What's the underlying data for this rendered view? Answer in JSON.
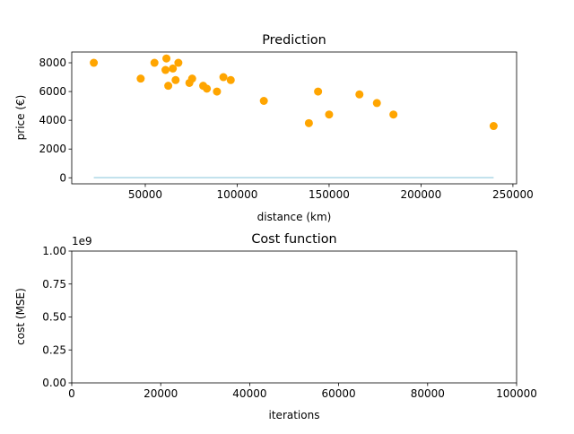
{
  "chart_data": [
    {
      "type": "scatter",
      "title": "Prediction",
      "xlabel": "distance (km)",
      "ylabel": "price (€)",
      "xlim": [
        10000,
        252000
      ],
      "ylim": [
        -420,
        8750
      ],
      "xticks": [
        50000,
        100000,
        150000,
        200000,
        250000
      ],
      "xtick_labels": [
        "50000",
        "100000",
        "150000",
        "200000",
        "250000"
      ],
      "yticks": [
        0,
        2000,
        4000,
        6000,
        8000
      ],
      "ytick_labels": [
        "0",
        "2000",
        "4000",
        "6000",
        "8000"
      ],
      "grid": false,
      "series": [
        {
          "kind": "points",
          "color": "#ffa500",
          "points": [
            [
              22000,
              8000
            ],
            [
              47500,
              6900
            ],
            [
              55000,
              8000
            ],
            [
              61500,
              8300
            ],
            [
              61000,
              7500
            ],
            [
              62500,
              6400
            ],
            [
              65000,
              7600
            ],
            [
              66500,
              6800
            ],
            [
              68000,
              8000
            ],
            [
              74000,
              6600
            ],
            [
              75500,
              6900
            ],
            [
              81500,
              6400
            ],
            [
              83500,
              6200
            ],
            [
              89000,
              6000
            ],
            [
              92500,
              7000
            ],
            [
              96500,
              6800
            ],
            [
              114500,
              5350
            ],
            [
              139000,
              3800
            ],
            [
              144000,
              6000
            ],
            [
              150000,
              4400
            ],
            [
              166500,
              5800
            ],
            [
              176000,
              5200
            ],
            [
              185000,
              4400
            ],
            [
              239500,
              3600
            ]
          ]
        },
        {
          "kind": "line",
          "color": "#add8e6",
          "points": [
            [
              22000,
              10
            ],
            [
              239500,
              10
            ]
          ]
        }
      ]
    },
    {
      "type": "line",
      "title": "Cost function",
      "xlabel": "iterations",
      "ylabel": "cost (MSE)",
      "xlim": [
        0,
        100000
      ],
      "ylim": [
        0,
        1
      ],
      "y_offset_text": "1e9",
      "xticks": [
        0,
        20000,
        40000,
        60000,
        80000,
        100000
      ],
      "xtick_labels": [
        "0",
        "20000",
        "40000",
        "60000",
        "80000",
        "100000"
      ],
      "yticks": [
        0,
        0.25,
        0.5,
        0.75,
        1.0
      ],
      "ytick_labels": [
        "0.00",
        "0.25",
        "0.50",
        "0.75",
        "1.00"
      ],
      "grid": false,
      "series": []
    }
  ]
}
